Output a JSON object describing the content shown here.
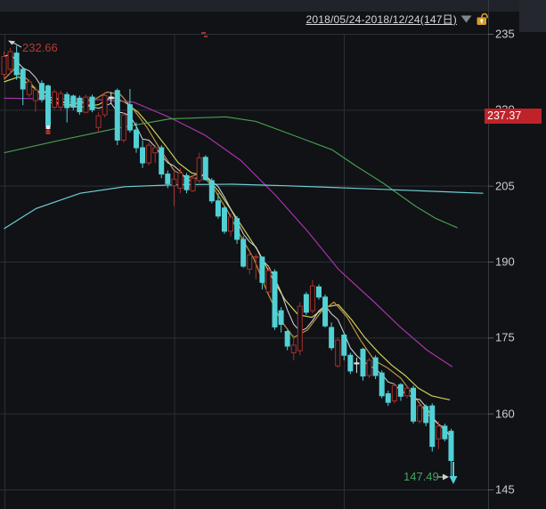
{
  "header": {
    "date_range": "2018/05/24-2018/12/24(147日)",
    "dropdown_icon": "triangle-down",
    "lock_icon": "unlocked-padlock",
    "lock_color": "#d99b2e"
  },
  "axis": {
    "ticks": [
      235,
      220,
      205,
      190,
      175,
      160,
      145
    ],
    "price_badge": "237.37",
    "badge_color": "#bf2329"
  },
  "annotations": {
    "high": "232.66",
    "low": "147.49",
    "high_color": "#b23c34",
    "low_color": "#47a35f"
  },
  "colors": {
    "background": "#101216",
    "grid": "#2b2f35",
    "candle_up": "#a5302a",
    "candle_down": "#52d1d5",
    "candle_neutral": "#dfe3e6",
    "ma_white": "#d9dbdd",
    "ma_yellow": "#cdd05a",
    "ma_orange": "#bd9440",
    "ma_magenta": "#a833a8",
    "ma_green": "#4a9a4e",
    "ma_cyan": "#6ecfd4",
    "axis_text": "#c9cdd5"
  },
  "chart_data": {
    "type": "candlestick",
    "title": "2018/05/24-2018/12/24(147日)",
    "ylabel": "price",
    "y_ticks": [
      235,
      220,
      205,
      190,
      175,
      160,
      145
    ],
    "ylim": [
      143,
      237
    ],
    "grid": true,
    "high_annotation": 232.66,
    "low_annotation": 147.49,
    "price_line_value": 237.37,
    "candles_ohlc_flag": [
      [
        227,
        231.5,
        226,
        230.5,
        "r"
      ],
      [
        228,
        232.2,
        227,
        231.5,
        "r"
      ],
      [
        231.2,
        232.66,
        225.9,
        226.9,
        "c"
      ],
      [
        228,
        228.5,
        220.9,
        224.1,
        "c"
      ],
      [
        223,
        226,
        222.5,
        225.5,
        "r"
      ],
      [
        221.8,
        224.5,
        219.6,
        223.9,
        "r"
      ],
      [
        225.2,
        225.8,
        221.5,
        222,
        "c"
      ],
      [
        224.7,
        225,
        215.5,
        216.9,
        "c"
      ],
      [
        220.5,
        224,
        220,
        223.5,
        "r"
      ],
      [
        220.5,
        223.8,
        219.8,
        223.2,
        "r"
      ],
      [
        223,
        223.5,
        217.5,
        220.4,
        "c"
      ],
      [
        222.7,
        223,
        219.9,
        220.5,
        "c"
      ],
      [
        222.3,
        222.8,
        219,
        219.6,
        "c"
      ],
      [
        219.5,
        223,
        219.3,
        222.5,
        "r"
      ],
      [
        222.5,
        223,
        219.5,
        220,
        "c"
      ],
      [
        216.5,
        219.5,
        215.5,
        218.8,
        "r"
      ],
      [
        219,
        223.5,
        218.5,
        222.8,
        "r"
      ],
      [
        222.5,
        223.5,
        221.2,
        222.2,
        "w"
      ],
      [
        223.8,
        224.2,
        213,
        214,
        "c"
      ],
      [
        214,
        219.5,
        213.5,
        219,
        "r"
      ],
      [
        221,
        224.1,
        215.5,
        216,
        "c"
      ],
      [
        216,
        217.5,
        211.5,
        212.5,
        "c"
      ],
      [
        212.5,
        214,
        208.5,
        209.5,
        "c"
      ],
      [
        209.5,
        213.5,
        209,
        213,
        "r"
      ],
      [
        211.5,
        213,
        209.5,
        212.5,
        "r"
      ],
      [
        212.5,
        213,
        206.5,
        207.3,
        "c"
      ],
      [
        207.3,
        208,
        204.5,
        205.4,
        "c"
      ],
      [
        205,
        208,
        201,
        206.3,
        "r"
      ],
      [
        204.5,
        208.5,
        203.5,
        207.5,
        "r"
      ],
      [
        207,
        207.5,
        203.5,
        204.2,
        "c"
      ],
      [
        204,
        207,
        203.8,
        206.5,
        "r"
      ],
      [
        206,
        211.5,
        205.5,
        210.5,
        "r"
      ],
      [
        210.6,
        211,
        206,
        206.2,
        "c"
      ],
      [
        206,
        206.5,
        201.5,
        202,
        "c"
      ],
      [
        202,
        203.5,
        198.5,
        199,
        "c"
      ],
      [
        200.6,
        201,
        195.5,
        196,
        "c"
      ],
      [
        196,
        199.5,
        195,
        198.8,
        "r"
      ],
      [
        198.5,
        199,
        193.5,
        194.4,
        "c"
      ],
      [
        194.4,
        195,
        188.8,
        189.1,
        "c"
      ],
      [
        188.5,
        192,
        187.5,
        191.3,
        "r"
      ],
      [
        191,
        191.5,
        186.5,
        190.9,
        "r"
      ],
      [
        190.9,
        191,
        184.5,
        185.9,
        "c"
      ],
      [
        184,
        189,
        183.8,
        188.2,
        "r"
      ],
      [
        188,
        188.5,
        176.5,
        177.1,
        "c"
      ],
      [
        180.3,
        181,
        176,
        177.6,
        "c"
      ],
      [
        176.2,
        176.5,
        172.5,
        173.3,
        "c"
      ],
      [
        173.5,
        175.5,
        170.5,
        172,
        "r"
      ],
      [
        172.4,
        182,
        171.5,
        181.2,
        "r"
      ],
      [
        183.5,
        184,
        179.5,
        180,
        "c"
      ],
      [
        180.3,
        186.4,
        179.8,
        185.2,
        "r"
      ],
      [
        185,
        185.5,
        182.5,
        183,
        "c"
      ],
      [
        183,
        183.5,
        177,
        177.3,
        "c"
      ],
      [
        177,
        178,
        172.5,
        173,
        "c"
      ],
      [
        169.4,
        175,
        169,
        174.5,
        "r"
      ],
      [
        175.5,
        176,
        170.5,
        171.5,
        "c"
      ],
      [
        171.5,
        172,
        167.8,
        168.4,
        "c"
      ],
      [
        170,
        171,
        168,
        169.8,
        "w"
      ],
      [
        172.7,
        173,
        166.5,
        167.4,
        "c"
      ],
      [
        167.5,
        171,
        167,
        170.5,
        "r"
      ],
      [
        171,
        171.5,
        166.8,
        167.5,
        "c"
      ],
      [
        168,
        168.5,
        163,
        163.5,
        "c"
      ],
      [
        163.9,
        164.5,
        161.5,
        162.2,
        "c"
      ],
      [
        162.5,
        166,
        162,
        165.5,
        "r"
      ],
      [
        165.7,
        166,
        162.5,
        163.4,
        "c"
      ],
      [
        163.5,
        165.5,
        163,
        165,
        "r"
      ],
      [
        165,
        165.5,
        158,
        158.5,
        "c"
      ],
      [
        158.5,
        162,
        158,
        161.5,
        "r"
      ],
      [
        161.4,
        161.8,
        157.5,
        158.2,
        "c"
      ],
      [
        161.5,
        162,
        152.5,
        153.5,
        "c"
      ],
      [
        155,
        158.5,
        153,
        157.5,
        "r"
      ],
      [
        157.5,
        158,
        154.5,
        155,
        "c"
      ],
      [
        156.5,
        157,
        147.49,
        150.7,
        "c"
      ]
    ],
    "overlays": [
      {
        "name": "ma-yellow",
        "color": "#cdd05a",
        "anchors": [
          [
            0,
            225.5
          ],
          [
            2.3,
            226.5
          ],
          [
            5.1,
            224
          ],
          [
            7.3,
            222
          ],
          [
            9.3,
            221
          ],
          [
            12.1,
            220.5
          ],
          [
            15,
            221
          ],
          [
            17.1,
            222.5
          ],
          [
            19.2,
            221.5
          ],
          [
            21.3,
            219.5
          ],
          [
            23.4,
            216.5
          ],
          [
            25.6,
            213
          ],
          [
            27.7,
            209.5
          ],
          [
            29.8,
            207.5
          ],
          [
            31.9,
            207
          ],
          [
            34,
            204
          ],
          [
            36.2,
            200
          ],
          [
            38.3,
            196
          ],
          [
            40.4,
            192
          ],
          [
            42.5,
            187
          ],
          [
            44.6,
            182.5
          ],
          [
            46.7,
            179.5
          ],
          [
            48.9,
            179
          ],
          [
            51,
            181
          ],
          [
            53.1,
            181.5
          ],
          [
            55.2,
            178.5
          ],
          [
            57.3,
            175
          ],
          [
            59.5,
            172
          ],
          [
            61.6,
            169.5
          ],
          [
            63.7,
            167.5
          ],
          [
            65.8,
            165
          ],
          [
            67.9,
            163.5
          ],
          [
            69.6,
            163
          ],
          [
            70.8,
            162.7
          ]
        ]
      },
      {
        "name": "ma-orange",
        "color": "#bd9440",
        "anchors": [
          [
            0,
            226
          ],
          [
            1.6,
            228
          ],
          [
            3.7,
            226
          ],
          [
            5.8,
            223
          ],
          [
            7.9,
            221
          ],
          [
            10,
            221.5
          ],
          [
            12.1,
            221.5
          ],
          [
            14.3,
            222
          ],
          [
            16.4,
            223.5
          ],
          [
            18.5,
            223
          ],
          [
            20.6,
            220
          ],
          [
            22.7,
            216.5
          ],
          [
            24.9,
            212
          ],
          [
            27,
            208
          ],
          [
            29.1,
            206.5
          ],
          [
            31.2,
            207.5
          ],
          [
            33.3,
            204.5
          ],
          [
            35.5,
            200
          ],
          [
            37.6,
            195
          ],
          [
            39.7,
            190.5
          ],
          [
            41.8,
            184
          ],
          [
            43.9,
            178.5
          ],
          [
            46,
            175
          ],
          [
            48.2,
            176.5
          ],
          [
            50.3,
            180
          ],
          [
            52.4,
            182
          ],
          [
            54.5,
            179
          ],
          [
            56.6,
            174.5
          ],
          [
            58.8,
            170.5
          ],
          [
            60.9,
            169
          ],
          [
            63,
            167
          ],
          [
            65.1,
            163.5
          ],
          [
            67.2,
            160
          ],
          [
            69.3,
            157.5
          ],
          [
            70.5,
            156.1
          ]
        ]
      },
      {
        "name": "ma-magenta",
        "color": "#a833a8",
        "anchors": [
          [
            0,
            222.3
          ],
          [
            15,
            222
          ],
          [
            20.6,
            221.5
          ],
          [
            26.3,
            218.5
          ],
          [
            31.9,
            215
          ],
          [
            37.6,
            210
          ],
          [
            43.2,
            203
          ],
          [
            48.2,
            196
          ],
          [
            53.1,
            188.5
          ],
          [
            58.8,
            182
          ],
          [
            63,
            177
          ],
          [
            67.2,
            172.5
          ],
          [
            71.2,
            169.2
          ]
        ]
      },
      {
        "name": "ma-green",
        "color": "#4a9a4e",
        "anchors": [
          [
            0,
            211.5
          ],
          [
            8.3,
            213.8
          ],
          [
            18.2,
            216.4
          ],
          [
            26.3,
            218.2
          ],
          [
            35.2,
            218.6
          ],
          [
            40,
            217.7
          ],
          [
            46.5,
            214.7
          ],
          [
            52.1,
            212.1
          ],
          [
            55.9,
            208.9
          ],
          [
            60.2,
            205.5
          ],
          [
            65.4,
            200.9
          ],
          [
            68.6,
            198.5
          ],
          [
            72,
            196.7
          ]
        ]
      },
      {
        "name": "ma-cyan",
        "color": "#6ecfd4",
        "anchors": [
          [
            0,
            196.5
          ],
          [
            5.1,
            200.5
          ],
          [
            12.1,
            203.5
          ],
          [
            19.2,
            204.8
          ],
          [
            27.7,
            205.2
          ],
          [
            36.2,
            205.3
          ],
          [
            44.6,
            205
          ],
          [
            53.1,
            204.6
          ],
          [
            61.6,
            204.2
          ],
          [
            70,
            203.8
          ],
          [
            76.1,
            203.5
          ]
        ]
      }
    ],
    "ma_white_window": 5,
    "trade_marker_day": 7,
    "drop_arrow_day": 71
  }
}
